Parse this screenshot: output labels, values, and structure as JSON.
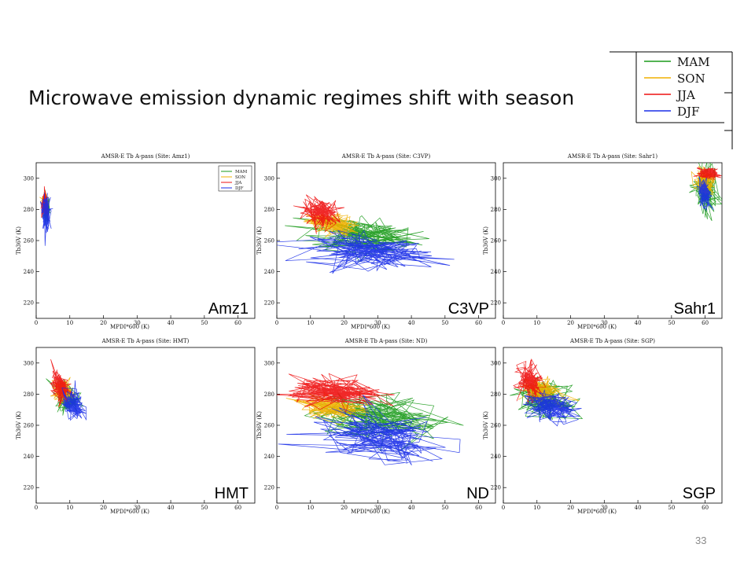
{
  "slide": {
    "title": "Microwave emission dynamic regimes shift with season",
    "page_number": "33"
  },
  "legend": {
    "entries": [
      {
        "name": "MAM",
        "color": "#1a9a1a"
      },
      {
        "name": "SON",
        "color": "#f0b000"
      },
      {
        "name": "JJA",
        "color": "#ee1111"
      },
      {
        "name": "DJF",
        "color": "#1a2ee8"
      }
    ]
  },
  "chart_data": [
    {
      "type": "line",
      "title": "AMSR-E Tb A-pass (Site: Amz1)",
      "site_label": "Amz1",
      "xlabel": "MPDI*600 (K)",
      "ylabel": "Tb36V (K)",
      "xlim": [
        0,
        65
      ],
      "ylim": [
        210,
        310
      ],
      "xticks": [
        0,
        10,
        20,
        30,
        40,
        50,
        60
      ],
      "yticks": [
        220,
        240,
        260,
        280,
        300
      ],
      "show_legend": true,
      "legend": [
        "MAM",
        "SON",
        "JJA",
        "DJF"
      ],
      "series": [
        {
          "name": "MAM",
          "color": "#1a9a1a",
          "cx": 3,
          "cy": 281,
          "sx": 0.6,
          "sy": 5
        },
        {
          "name": "SON",
          "color": "#f0b000",
          "cx": 2.6,
          "cy": 284,
          "sx": 0.5,
          "sy": 3
        },
        {
          "name": "JJA",
          "color": "#ee1111",
          "cx": 2.6,
          "cy": 283,
          "sx": 0.5,
          "sy": 4
        },
        {
          "name": "DJF",
          "color": "#1a2ee8",
          "cx": 3,
          "cy": 278,
          "sx": 0.7,
          "sy": 6
        }
      ]
    },
    {
      "type": "line",
      "title": "AMSR-E Tb A-pass (Site: C3VP)",
      "site_label": "C3VP",
      "xlabel": "MPDI*600 (K)",
      "ylabel": "Tb36V (K)",
      "xlim": [
        0,
        65
      ],
      "ylim": [
        210,
        310
      ],
      "xticks": [
        0,
        10,
        20,
        30,
        40,
        50,
        60
      ],
      "yticks": [
        220,
        240,
        260,
        280,
        300
      ],
      "show_legend": false,
      "series": [
        {
          "name": "MAM",
          "color": "#1a9a1a",
          "cx": 26,
          "cy": 264,
          "sx": 9,
          "sy": 7
        },
        {
          "name": "SON",
          "color": "#f0b000",
          "cx": 16,
          "cy": 270,
          "sx": 4,
          "sy": 4
        },
        {
          "name": "JJA",
          "color": "#ee1111",
          "cx": 13,
          "cy": 278,
          "sx": 3,
          "sy": 5
        },
        {
          "name": "DJF",
          "color": "#1a2ee8",
          "cx": 28,
          "cy": 253,
          "sx": 10,
          "sy": 6
        }
      ]
    },
    {
      "type": "line",
      "title": "AMSR-E Tb A-pass (Site: Sahr1)",
      "site_label": "Sahr1",
      "xlabel": "MPDI*600 (K)",
      "ylabel": "Tb36V (K)",
      "xlim": [
        0,
        65
      ],
      "ylim": [
        210,
        310
      ],
      "xticks": [
        0,
        10,
        20,
        30,
        40,
        50,
        60
      ],
      "yticks": [
        220,
        240,
        260,
        280,
        300
      ],
      "show_legend": false,
      "series": [
        {
          "name": "MAM",
          "color": "#1a9a1a",
          "cx": 60,
          "cy": 292,
          "sx": 2,
          "sy": 8
        },
        {
          "name": "SON",
          "color": "#f0b000",
          "cx": 60,
          "cy": 298,
          "sx": 1.5,
          "sy": 4
        },
        {
          "name": "JJA",
          "color": "#ee1111",
          "cx": 61,
          "cy": 303,
          "sx": 1.5,
          "sy": 2
        },
        {
          "name": "DJF",
          "color": "#1a2ee8",
          "cx": 60,
          "cy": 291,
          "sx": 1,
          "sy": 5
        }
      ]
    },
    {
      "type": "line",
      "title": "AMSR-E Tb A-pass (Site: HMT)",
      "site_label": "HMT",
      "xlabel": "MPDI*600 (K)",
      "ylabel": "Tb36V (K)",
      "xlim": [
        0,
        65
      ],
      "ylim": [
        210,
        310
      ],
      "xticks": [
        0,
        10,
        20,
        30,
        40,
        50,
        60
      ],
      "yticks": [
        220,
        240,
        260,
        280,
        300
      ],
      "show_legend": false,
      "series": [
        {
          "name": "MAM",
          "color": "#1a9a1a",
          "cx": 9,
          "cy": 278,
          "sx": 2,
          "sy": 5
        },
        {
          "name": "SON",
          "color": "#f0b000",
          "cx": 8,
          "cy": 282,
          "sx": 1.5,
          "sy": 4
        },
        {
          "name": "JJA",
          "color": "#ee1111",
          "cx": 7,
          "cy": 285,
          "sx": 1.5,
          "sy": 5
        },
        {
          "name": "DJF",
          "color": "#1a2ee8",
          "cx": 11,
          "cy": 273,
          "sx": 1.8,
          "sy": 5
        }
      ]
    },
    {
      "type": "line",
      "title": "AMSR-E Tb A-pass (Site: ND)",
      "site_label": "ND",
      "xlabel": "MPDI*600 (K)",
      "ylabel": "Tb36V (K)",
      "xlim": [
        0,
        65
      ],
      "ylim": [
        210,
        310
      ],
      "xticks": [
        0,
        10,
        20,
        30,
        40,
        50,
        60
      ],
      "yticks": [
        220,
        240,
        260,
        280,
        300
      ],
      "show_legend": false,
      "series": [
        {
          "name": "MAM",
          "color": "#1a9a1a",
          "cx": 30,
          "cy": 266,
          "sx": 11,
          "sy": 8
        },
        {
          "name": "SON",
          "color": "#f0b000",
          "cx": 16,
          "cy": 272,
          "sx": 5,
          "sy": 4
        },
        {
          "name": "JJA",
          "color": "#ee1111",
          "cx": 18,
          "cy": 281,
          "sx": 8,
          "sy": 5
        },
        {
          "name": "DJF",
          "color": "#1a2ee8",
          "cx": 30,
          "cy": 252,
          "sx": 12,
          "sy": 9
        }
      ]
    },
    {
      "type": "line",
      "title": "AMSR-E Tb A-pass (Site: SGP)",
      "site_label": "SGP",
      "xlabel": "MPDI*600 (K)",
      "ylabel": "Tb36V (K)",
      "xlim": [
        0,
        65
      ],
      "ylim": [
        210,
        310
      ],
      "xticks": [
        0,
        10,
        20,
        30,
        40,
        50,
        60
      ],
      "yticks": [
        220,
        240,
        260,
        280,
        300
      ],
      "show_legend": false,
      "series": [
        {
          "name": "MAM",
          "color": "#1a9a1a",
          "cx": 12,
          "cy": 277,
          "sx": 4,
          "sy": 6
        },
        {
          "name": "SON",
          "color": "#f0b000",
          "cx": 11,
          "cy": 282,
          "sx": 3,
          "sy": 4
        },
        {
          "name": "JJA",
          "color": "#ee1111",
          "cx": 8,
          "cy": 288,
          "sx": 2,
          "sy": 6
        },
        {
          "name": "DJF",
          "color": "#1a2ee8",
          "cx": 14,
          "cy": 271,
          "sx": 4,
          "sy": 5
        }
      ]
    }
  ]
}
